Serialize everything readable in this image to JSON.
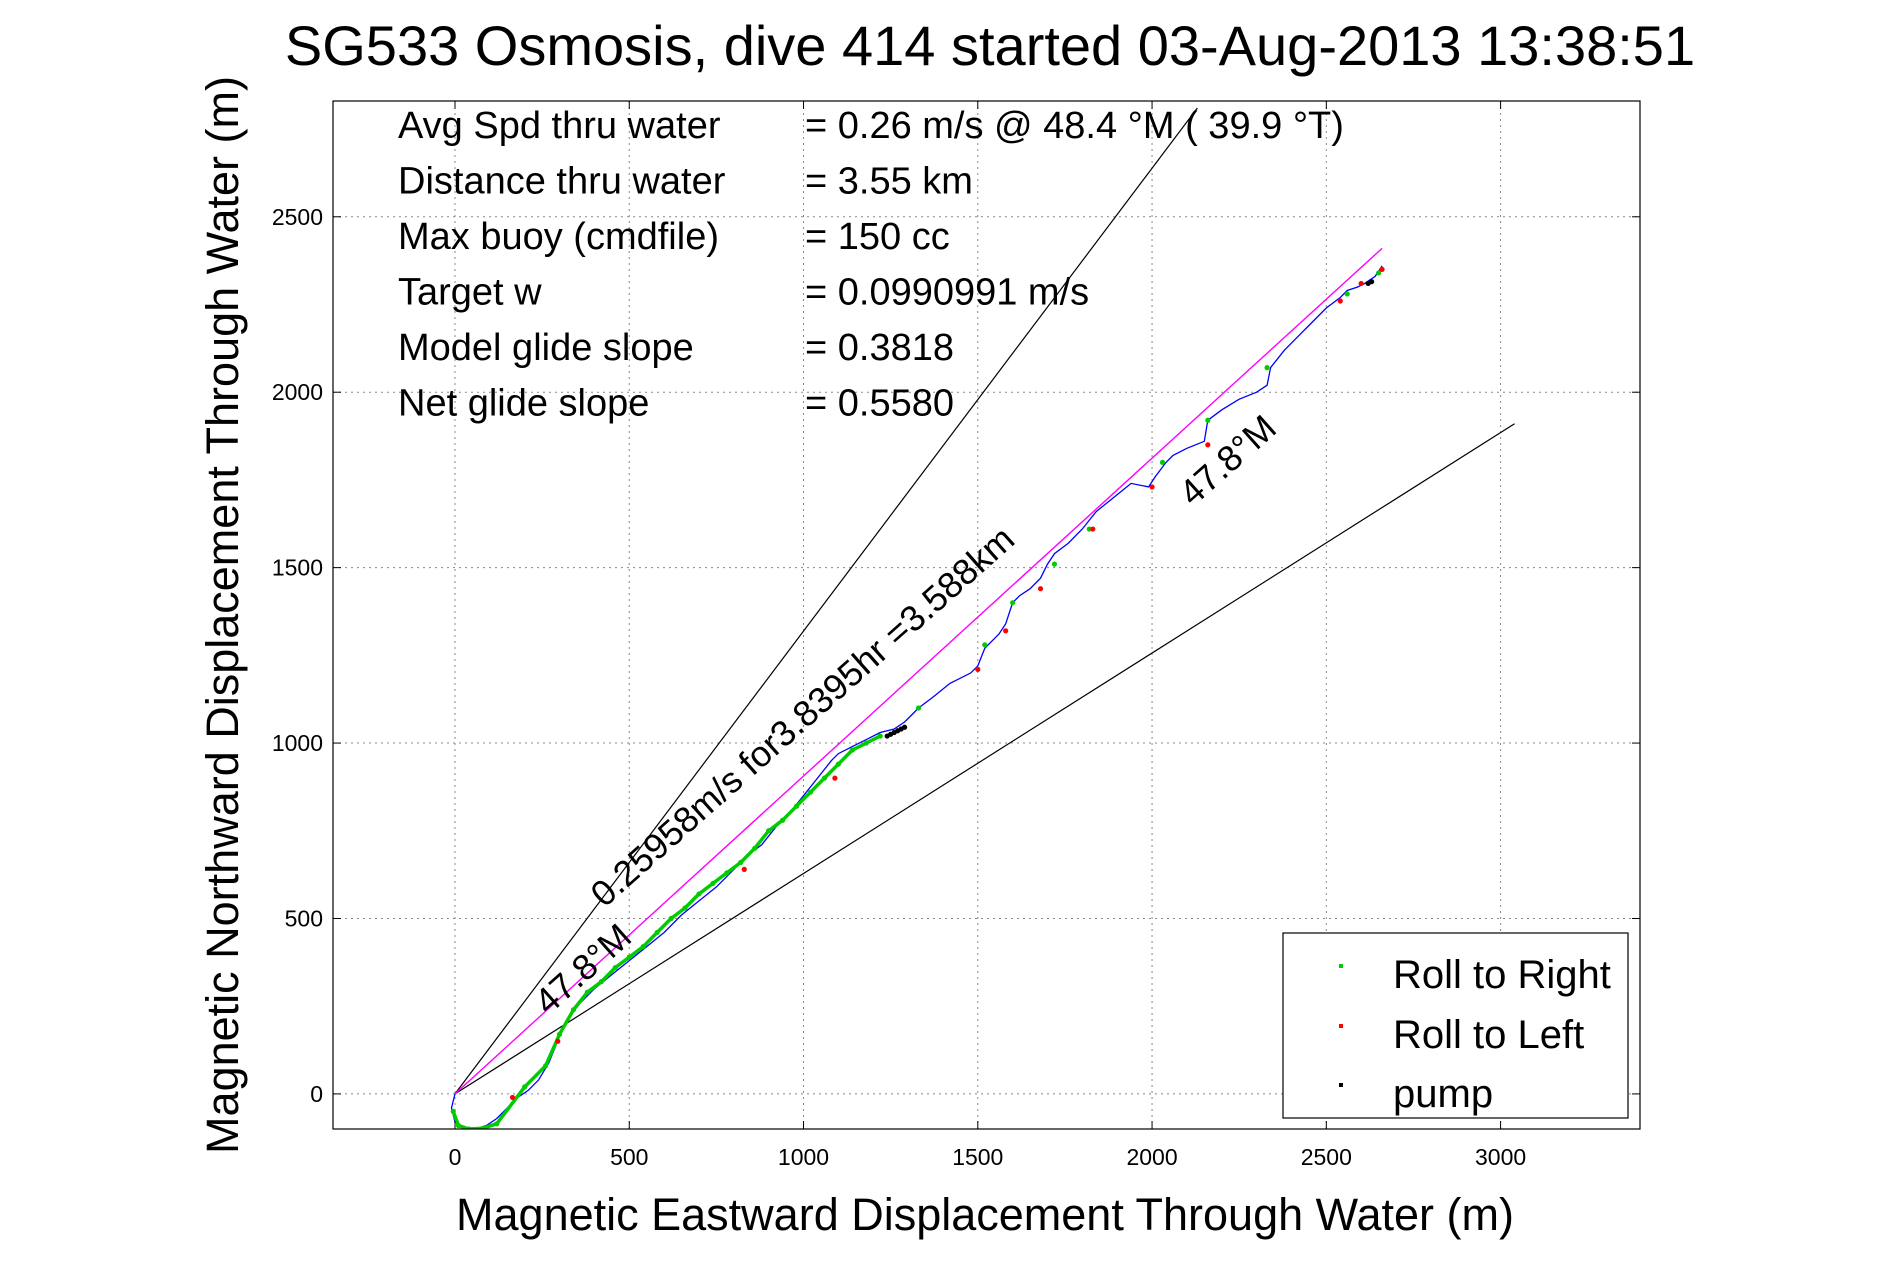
{
  "chart_data": {
    "type": "scatter",
    "title": "SG533 Osmosis, dive 414 started 03-Aug-2013 13:38:51",
    "xlabel": "Magnetic Eastward Displacement Through Water (m)",
    "ylabel": "Magnetic Northward Displacement Through Water (m)",
    "xlim": [
      -350,
      3400
    ],
    "ylim": [
      -100,
      2830
    ],
    "xticks": [
      0,
      500,
      1000,
      1500,
      2000,
      2500,
      3000
    ],
    "yticks": [
      0,
      500,
      1000,
      1500,
      2000,
      2500
    ],
    "grid": true,
    "legend": {
      "position": "bottom-right",
      "entries": [
        "Roll to Right",
        "Roll to Left",
        "pump"
      ]
    },
    "colors": {
      "roll_right": "#00cc00",
      "roll_left": "#ff0000",
      "pump": "#000000",
      "track": "#0000ff",
      "net_line": "#ff00ff",
      "guide": "#000000"
    },
    "stats": [
      {
        "label": "Avg Spd thru water",
        "value": "=  0.26 m/s @  48.4 °M ( 39.9 °T)"
      },
      {
        "label": "Distance thru water",
        "value": "=  3.55 km"
      },
      {
        "label": "Max buoy (cmdfile)",
        "value": "= 150 cc"
      },
      {
        "label": "Target w",
        "value": "= 0.0990991 m/s"
      },
      {
        "label": "Model glide slope",
        "value": "= 0.3818"
      },
      {
        "label": "Net glide slope",
        "value": "= 0.5580"
      }
    ],
    "annotations": [
      {
        "text": "0.25958m/s for3.8395hr =3.588km",
        "x": 1020,
        "y": 1050,
        "angle_deg": 41.6
      },
      {
        "text": "47.8°M",
        "x": 390,
        "y": 330,
        "angle_deg": 41.6
      },
      {
        "text": "47.8°M",
        "x": 2240,
        "y": 1780,
        "angle_deg": 41.6
      }
    ],
    "guide_lines": [
      {
        "name": "upper",
        "from": [
          0,
          0
        ],
        "to": [
          2130,
          2810
        ]
      },
      {
        "name": "lower",
        "from": [
          0,
          0
        ],
        "to": [
          3040,
          1910
        ]
      }
    ],
    "net_line": {
      "from": [
        0,
        0
      ],
      "to": [
        2660,
        2410
      ]
    },
    "series": [
      {
        "name": "track",
        "x": [
          0,
          -10,
          0,
          30,
          60,
          90,
          120,
          150,
          180,
          210,
          240,
          270,
          290,
          300,
          320,
          360,
          400,
          450,
          500,
          550,
          600,
          650,
          700,
          750,
          800,
          840,
          880,
          920,
          960,
          1000,
          1040,
          1080,
          1100,
          1140,
          1180,
          1220,
          1260,
          1290,
          1310,
          1330,
          1370,
          1420,
          1480,
          1500,
          1520,
          1540,
          1560,
          1580,
          1600,
          1620,
          1650,
          1680,
          1700,
          1720,
          1760,
          1800,
          1840,
          1890,
          1940,
          1990,
          2010,
          2040,
          2060,
          2100,
          2150,
          2160,
          2200,
          2250,
          2300,
          2330,
          2340,
          2380,
          2420,
          2460,
          2500,
          2540,
          2560,
          2590,
          2610,
          2640,
          2660
        ],
        "y": [
          0,
          -40,
          -80,
          -100,
          -100,
          -90,
          -70,
          -40,
          -10,
          10,
          40,
          90,
          140,
          170,
          210,
          260,
          300,
          340,
          380,
          420,
          460,
          510,
          550,
          590,
          640,
          680,
          710,
          760,
          800,
          850,
          900,
          950,
          970,
          990,
          1010,
          1030,
          1040,
          1060,
          1080,
          1100,
          1130,
          1170,
          1200,
          1220,
          1270,
          1290,
          1310,
          1340,
          1400,
          1420,
          1440,
          1470,
          1510,
          1540,
          1570,
          1610,
          1660,
          1700,
          1740,
          1730,
          1760,
          1800,
          1820,
          1840,
          1860,
          1920,
          1950,
          1980,
          2000,
          2020,
          2070,
          2120,
          2160,
          2200,
          2240,
          2270,
          2290,
          2300,
          2310,
          2330,
          2360
        ]
      },
      {
        "name": "Roll to Right",
        "x": [
          -5,
          10,
          40,
          80,
          120,
          200,
          260,
          300,
          340,
          380,
          420,
          460,
          500,
          540,
          580,
          620,
          660,
          700,
          740,
          780,
          820,
          860,
          900,
          940,
          980,
          1020,
          1060,
          1100,
          1140,
          1180,
          1220,
          1330,
          1520,
          1600,
          1720,
          1820,
          2030,
          2160,
          2330,
          2560,
          2650
        ],
        "y": [
          -50,
          -90,
          -100,
          -98,
          -85,
          20,
          80,
          170,
          240,
          290,
          320,
          360,
          390,
          420,
          460,
          500,
          530,
          570,
          600,
          630,
          660,
          700,
          750,
          780,
          820,
          860,
          900,
          940,
          980,
          1000,
          1020,
          1100,
          1280,
          1400,
          1510,
          1610,
          1800,
          1920,
          2070,
          2280,
          2340
        ]
      },
      {
        "name": "Roll to Left",
        "x": [
          165,
          295,
          830,
          1090,
          1500,
          1580,
          1680,
          1830,
          2000,
          2160,
          2540,
          2600,
          2660
        ],
        "y": [
          -10,
          150,
          640,
          900,
          1210,
          1320,
          1440,
          1610,
          1730,
          1850,
          2260,
          2310,
          2350
        ]
      },
      {
        "name": "pump",
        "x": [
          1240,
          1250,
          1260,
          1270,
          1280,
          1290,
          2620,
          2630
        ],
        "y": [
          1020,
          1025,
          1030,
          1035,
          1040,
          1045,
          2310,
          2315
        ]
      }
    ]
  }
}
